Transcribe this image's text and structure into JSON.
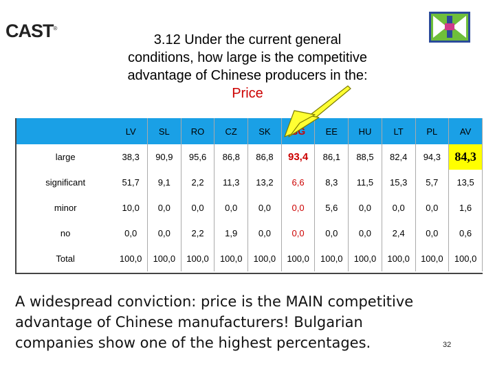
{
  "logo": {
    "text": "CAST",
    "mark": "®"
  },
  "title": {
    "lines": [
      "3.12 Under the current general",
      "conditions, how large is the competitive",
      "advantage of Chinese producers in the:"
    ],
    "highlight": "Price",
    "highlight_color": "#cc0000"
  },
  "table": {
    "header_color": "#1aa0e6",
    "columns": [
      "LV",
      "SL",
      "RO",
      "CZ",
      "SK",
      "BG",
      "EE",
      "HU",
      "LT",
      "PL",
      "AV"
    ],
    "rows": [
      {
        "label": "large",
        "values": [
          "38,3",
          "90,9",
          "95,6",
          "86,8",
          "86,8",
          "93,4",
          "86,1",
          "88,5",
          "82,4",
          "94,3",
          "84,3"
        ]
      },
      {
        "label": "significant",
        "values": [
          "51,7",
          "9,1",
          "2,2",
          "11,3",
          "13,2",
          "6,6",
          "8,3",
          "11,5",
          "15,3",
          "5,7",
          "13,5"
        ]
      },
      {
        "label": "minor",
        "values": [
          "10,0",
          "0,0",
          "0,0",
          "0,0",
          "0,0",
          "0,0",
          "5,6",
          "0,0",
          "0,0",
          "0,0",
          "1,6"
        ]
      },
      {
        "label": "no",
        "values": [
          "0,0",
          "0,0",
          "2,2",
          "1,9",
          "0,0",
          "0,0",
          "0,0",
          "0,0",
          "2,4",
          "0,0",
          "0,6"
        ]
      },
      {
        "label": "Total",
        "values": [
          "100,0",
          "100,0",
          "100,0",
          "100,0",
          "100,0",
          "100,0",
          "100,0",
          "100,0",
          "100,0",
          "100,0",
          "100,0"
        ]
      }
    ],
    "highlight_column": "BG",
    "highlight_color": "#cc0000",
    "av_highlight_color": "#ffff00"
  },
  "footer": {
    "lines": [
      "A widespread conviction: price is the MAIN competitive",
      "advantage of Chinese manufacturers! Bulgarian",
      "companies show one of the highest percentages."
    ]
  },
  "page_number": "32",
  "icons": {
    "arrow": "yellow-arrow-icon",
    "corner_logo": "project-logo-icon"
  }
}
